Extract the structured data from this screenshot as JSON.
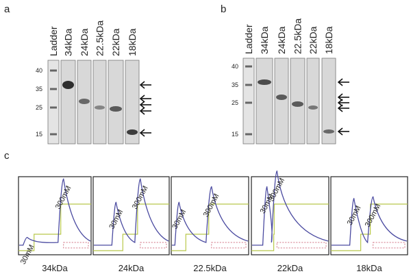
{
  "panels": {
    "a": {
      "label": "a",
      "lanes": [
        "Ladder",
        "34kDa",
        "24kDa",
        "22.5kDa",
        "22kDa",
        "18kDa"
      ],
      "markers": [
        40,
        35,
        25,
        15
      ]
    },
    "b": {
      "label": "b",
      "lanes": [
        "Ladder",
        "34kDa",
        "24kDa",
        "22.5kDa",
        "22kDa",
        "18kDa"
      ],
      "markers": [
        40,
        35,
        25,
        15
      ]
    },
    "c": {
      "label": "c",
      "traces": [
        {
          "peak_labels": [
            "30mM",
            "300mM"
          ],
          "caption": "34kDa"
        },
        {
          "peak_labels": [
            "30mM",
            "300mM"
          ],
          "caption": "24kDa"
        },
        {
          "peak_labels": [
            "30mM",
            "300mM"
          ],
          "caption": "22.5kDa"
        },
        {
          "peak_labels": [
            "30mM",
            "300mM"
          ],
          "caption": "22kDa"
        },
        {
          "peak_labels": [
            "30mM",
            "300mM"
          ],
          "caption": "18kDa"
        }
      ]
    }
  }
}
